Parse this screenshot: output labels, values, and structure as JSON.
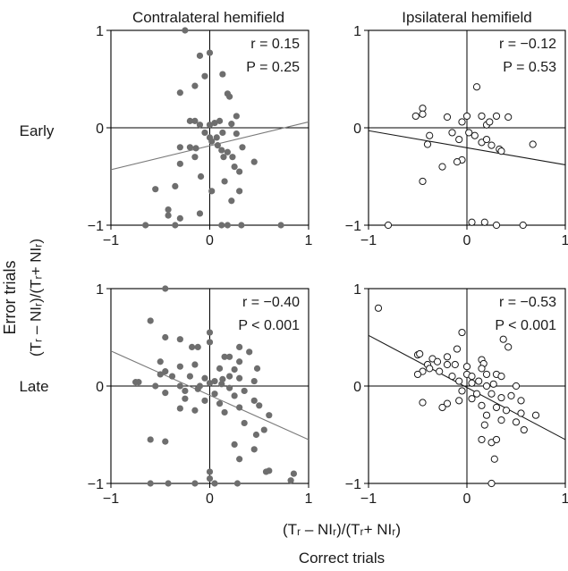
{
  "figure": {
    "col_titles": [
      "Contralateral hemifield",
      "Ipsilateral hemifield"
    ],
    "row_labels": [
      "Early",
      "Late"
    ],
    "ylabel_line1": "Error trials",
    "ylabel_line2": "(Tᵣ – NIᵣ)/(Tᵣ+ NIᵣ)",
    "xlabel_line1": "(Tᵣ – NIᵣ)/(Tᵣ+ NIᵣ)",
    "xlabel_line2": "Correct trials",
    "ticks": [
      "−1",
      "0",
      "1"
    ],
    "colors": {
      "filled": "#6e6e6e",
      "open": "#1a1a1a",
      "contra_line": "#7a7a7a",
      "ipsi_line": "#1a1a1a"
    }
  },
  "chart_data": [
    {
      "type": "scatter",
      "panel": "contralateral-early",
      "marker": "filled",
      "stat_r": "r = 0.15",
      "stat_p": "P = 0.25",
      "xlim": [
        -1,
        1
      ],
      "ylim": [
        -1,
        1
      ],
      "fit": {
        "x": [
          -1,
          1
        ],
        "y": [
          -0.43,
          0.06
        ]
      },
      "points": [
        [
          -0.25,
          1.0
        ],
        [
          -0.1,
          0.74
        ],
        [
          0.0,
          0.77
        ],
        [
          0.13,
          0.55
        ],
        [
          -0.05,
          0.53
        ],
        [
          -0.15,
          0.43
        ],
        [
          -0.3,
          0.36
        ],
        [
          0.18,
          0.35
        ],
        [
          0.2,
          0.32
        ],
        [
          0.27,
          0.12
        ],
        [
          0.1,
          0.07
        ],
        [
          -0.2,
          0.07
        ],
        [
          -0.15,
          0.07
        ],
        [
          -0.1,
          0.03
        ],
        [
          0.0,
          0.03
        ],
        [
          0.05,
          0.05
        ],
        [
          0.22,
          0.04
        ],
        [
          -0.05,
          -0.05
        ],
        [
          0.0,
          -0.1
        ],
        [
          0.07,
          -0.1
        ],
        [
          0.13,
          -0.05
        ],
        [
          0.02,
          -0.14
        ],
        [
          0.08,
          -0.18
        ],
        [
          0.27,
          -0.06
        ],
        [
          0.12,
          -0.23
        ],
        [
          -0.2,
          -0.2
        ],
        [
          -0.3,
          -0.2
        ],
        [
          -0.14,
          -0.21
        ],
        [
          0.18,
          -0.25
        ],
        [
          0.23,
          -0.3
        ],
        [
          0.33,
          -0.2
        ],
        [
          0.14,
          -0.3
        ],
        [
          -0.15,
          -0.3
        ],
        [
          -0.3,
          -0.37
        ],
        [
          0.45,
          -0.35
        ],
        [
          0.25,
          -0.4
        ],
        [
          0.3,
          -0.45
        ],
        [
          -0.09,
          -0.5
        ],
        [
          -0.35,
          -0.6
        ],
        [
          0.15,
          -0.55
        ],
        [
          0.02,
          -0.65
        ],
        [
          0.3,
          -0.65
        ],
        [
          -0.55,
          -0.63
        ],
        [
          0.22,
          -0.75
        ],
        [
          -0.42,
          -0.84
        ],
        [
          -0.1,
          -0.88
        ],
        [
          -0.42,
          -0.9
        ],
        [
          -0.3,
          -0.93
        ],
        [
          -0.65,
          -1.0
        ],
        [
          -0.35,
          -1.0
        ],
        [
          0.12,
          -1.0
        ],
        [
          0.18,
          -1.0
        ],
        [
          0.32,
          -1.0
        ],
        [
          0.72,
          -1.0
        ]
      ]
    },
    {
      "type": "scatter",
      "panel": "ipsilateral-early",
      "marker": "open",
      "stat_r": "r = −0.12",
      "stat_p": "P = 0.53",
      "xlim": [
        -1,
        1
      ],
      "ylim": [
        -1,
        1
      ],
      "fit": {
        "x": [
          -1,
          1
        ],
        "y": [
          -0.03,
          -0.38
        ]
      },
      "points": [
        [
          0.1,
          0.42
        ],
        [
          -0.45,
          0.2
        ],
        [
          -0.45,
          0.14
        ],
        [
          -0.2,
          0.11
        ],
        [
          0.0,
          0.12
        ],
        [
          0.15,
          0.12
        ],
        [
          0.3,
          0.12
        ],
        [
          0.42,
          0.11
        ],
        [
          -0.52,
          0.12
        ],
        [
          -0.05,
          0.06
        ],
        [
          0.2,
          0.03
        ],
        [
          0.23,
          0.06
        ],
        [
          -0.15,
          -0.05
        ],
        [
          -0.38,
          -0.08
        ],
        [
          0.02,
          -0.05
        ],
        [
          0.08,
          -0.08
        ],
        [
          -0.08,
          -0.12
        ],
        [
          0.15,
          -0.15
        ],
        [
          0.2,
          -0.12
        ],
        [
          0.25,
          -0.18
        ],
        [
          0.67,
          -0.17
        ],
        [
          -0.4,
          -0.17
        ],
        [
          0.33,
          -0.22
        ],
        [
          0.35,
          -0.24
        ],
        [
          -0.05,
          -0.33
        ],
        [
          -0.1,
          -0.35
        ],
        [
          -0.25,
          -0.4
        ],
        [
          -0.45,
          -0.55
        ],
        [
          -0.8,
          -1.0
        ],
        [
          0.18,
          -0.97
        ],
        [
          0.05,
          -0.97
        ],
        [
          0.57,
          -1.0
        ],
        [
          0.3,
          -1.0
        ]
      ]
    },
    {
      "type": "scatter",
      "panel": "contralateral-late",
      "marker": "filled",
      "stat_r": "r = −0.40",
      "stat_p": "P < 0.001",
      "xlim": [
        -1,
        1
      ],
      "ylim": [
        -1,
        1
      ],
      "fit": {
        "x": [
          -1,
          1
        ],
        "y": [
          0.36,
          -0.55
        ]
      },
      "points": [
        [
          -0.45,
          1.0
        ],
        [
          0.0,
          0.55
        ],
        [
          -0.6,
          0.67
        ],
        [
          -0.45,
          0.5
        ],
        [
          -0.3,
          0.48
        ],
        [
          0.0,
          0.45
        ],
        [
          -0.18,
          0.4
        ],
        [
          -0.12,
          0.4
        ],
        [
          0.3,
          0.4
        ],
        [
          0.4,
          0.35
        ],
        [
          0.15,
          0.3
        ],
        [
          0.2,
          0.3
        ],
        [
          0.3,
          0.25
        ],
        [
          0.48,
          0.18
        ],
        [
          -0.5,
          0.25
        ],
        [
          -0.3,
          0.2
        ],
        [
          -0.15,
          0.22
        ],
        [
          0.1,
          0.18
        ],
        [
          0.25,
          0.17
        ],
        [
          -0.5,
          0.12
        ],
        [
          -0.45,
          0.15
        ],
        [
          -0.38,
          0.1
        ],
        [
          -0.2,
          0.1
        ],
        [
          -0.05,
          0.08
        ],
        [
          0.05,
          0.05
        ],
        [
          0.13,
          0.07
        ],
        [
          0.2,
          0.1
        ],
        [
          0.3,
          0.08
        ],
        [
          0.45,
          0.05
        ],
        [
          -0.75,
          0.04
        ],
        [
          -0.72,
          0.04
        ],
        [
          -0.55,
          0.0
        ],
        [
          -0.3,
          0.0
        ],
        [
          -0.1,
          0.0
        ],
        [
          0.0,
          0.03
        ],
        [
          0.12,
          0.02
        ],
        [
          0.2,
          -0.02
        ],
        [
          0.35,
          -0.05
        ],
        [
          -0.45,
          -0.07
        ],
        [
          -0.25,
          -0.05
        ],
        [
          -0.12,
          -0.03
        ],
        [
          0.05,
          -0.08
        ],
        [
          0.25,
          -0.1
        ],
        [
          0.45,
          -0.15
        ],
        [
          0.5,
          -0.2
        ],
        [
          -0.25,
          -0.13
        ],
        [
          -0.05,
          -0.15
        ],
        [
          0.1,
          -0.18
        ],
        [
          0.3,
          -0.22
        ],
        [
          -0.3,
          -0.23
        ],
        [
          -0.15,
          -0.25
        ],
        [
          0.15,
          -0.27
        ],
        [
          0.6,
          -0.3
        ],
        [
          0.35,
          -0.38
        ],
        [
          0.55,
          -0.45
        ],
        [
          0.47,
          -0.5
        ],
        [
          -0.6,
          -0.55
        ],
        [
          -0.45,
          -0.57
        ],
        [
          0.25,
          -0.6
        ],
        [
          0.45,
          -0.65
        ],
        [
          0.3,
          -0.75
        ],
        [
          0.0,
          -0.88
        ],
        [
          0.6,
          -0.87
        ],
        [
          0.57,
          -0.88
        ],
        [
          0.85,
          -0.9
        ],
        [
          0.82,
          -0.97
        ],
        [
          0.0,
          -0.95
        ],
        [
          -0.6,
          -1.0
        ],
        [
          -0.42,
          -1.0
        ],
        [
          -0.15,
          -1.0
        ],
        [
          0.05,
          -1.0
        ],
        [
          0.28,
          -1.0
        ]
      ]
    },
    {
      "type": "scatter",
      "panel": "ipsilateral-late",
      "marker": "open",
      "stat_r": "r = −0.53",
      "stat_p": "P < 0.001",
      "xlim": [
        -1,
        1
      ],
      "ylim": [
        -1,
        1
      ],
      "fit": {
        "x": [
          -1,
          1
        ],
        "y": [
          0.52,
          -0.55
        ]
      },
      "points": [
        [
          -0.9,
          0.8
        ],
        [
          -0.05,
          0.55
        ],
        [
          0.37,
          0.48
        ],
        [
          0.42,
          0.4
        ],
        [
          -0.1,
          0.38
        ],
        [
          -0.2,
          0.3
        ],
        [
          -0.5,
          0.32
        ],
        [
          -0.48,
          0.33
        ],
        [
          -0.35,
          0.28
        ],
        [
          -0.3,
          0.25
        ],
        [
          -0.2,
          0.22
        ],
        [
          -0.12,
          0.22
        ],
        [
          0.0,
          0.2
        ],
        [
          0.15,
          0.27
        ],
        [
          0.17,
          0.23
        ],
        [
          -0.4,
          0.22
        ],
        [
          -0.45,
          0.15
        ],
        [
          -0.38,
          0.18
        ],
        [
          -0.28,
          0.15
        ],
        [
          -0.15,
          0.1
        ],
        [
          0.0,
          0.12
        ],
        [
          0.05,
          0.1
        ],
        [
          0.15,
          0.18
        ],
        [
          0.2,
          0.12
        ],
        [
          0.3,
          0.12
        ],
        [
          0.35,
          0.1
        ],
        [
          -0.5,
          0.12
        ],
        [
          -0.08,
          0.05
        ],
        [
          0.05,
          0.03
        ],
        [
          0.12,
          0.05
        ],
        [
          0.2,
          0.0
        ],
        [
          0.27,
          0.02
        ],
        [
          0.5,
          0.0
        ],
        [
          -0.05,
          -0.05
        ],
        [
          0.1,
          -0.08
        ],
        [
          0.25,
          -0.08
        ],
        [
          0.35,
          -0.12
        ],
        [
          0.45,
          -0.1
        ],
        [
          0.55,
          -0.15
        ],
        [
          -0.2,
          -0.18
        ],
        [
          -0.08,
          -0.15
        ],
        [
          0.05,
          -0.13
        ],
        [
          0.15,
          -0.2
        ],
        [
          0.3,
          -0.22
        ],
        [
          0.4,
          -0.25
        ],
        [
          0.55,
          -0.28
        ],
        [
          0.7,
          -0.3
        ],
        [
          -0.45,
          -0.17
        ],
        [
          -0.25,
          -0.22
        ],
        [
          0.2,
          -0.3
        ],
        [
          0.35,
          -0.35
        ],
        [
          0.5,
          -0.37
        ],
        [
          0.18,
          -0.4
        ],
        [
          0.58,
          -0.45
        ],
        [
          0.15,
          -0.55
        ],
        [
          0.25,
          -0.58
        ],
        [
          0.3,
          -0.55
        ],
        [
          0.28,
          -0.75
        ],
        [
          0.25,
          -1.0
        ]
      ]
    }
  ]
}
